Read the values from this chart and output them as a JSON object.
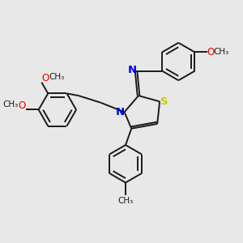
{
  "bg_color": "#e8e8e8",
  "bond_color": "#1a1a1a",
  "N_color": "#0000ee",
  "S_color": "#cccc00",
  "O_color": "#ee0000",
  "bond_width": 1.4,
  "font_size": 8.5,
  "figsize": [
    3.0,
    3.0
  ],
  "dpi": 100,
  "xlim": [
    0,
    10
  ],
  "ylim": [
    0,
    10
  ]
}
